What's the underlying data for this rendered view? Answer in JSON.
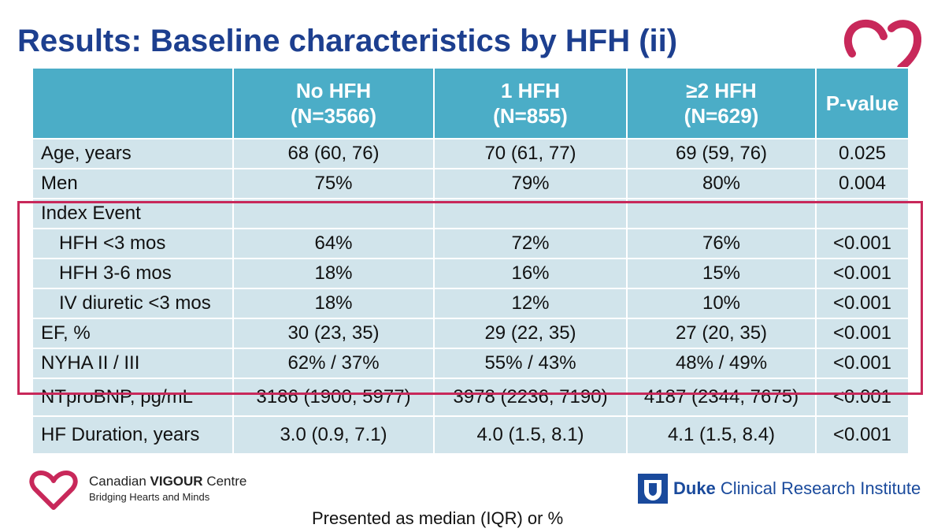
{
  "header": {
    "title": "Results: Baseline characteristics by HFH (ii)"
  },
  "table": {
    "columns": [
      {
        "name": "No HFH",
        "n": "(N=3566)"
      },
      {
        "name": "1 HFH",
        "n": "(N=855)"
      },
      {
        "name": "≥2 HFH",
        "n": "(N=629)"
      },
      {
        "name": "P-value"
      }
    ],
    "rows": [
      {
        "label": "Age, years",
        "values": [
          "68 (60, 76)",
          "70 (61, 77)",
          "69 (59, 76)",
          "0.025"
        ]
      },
      {
        "label": "Men",
        "values": [
          "75%",
          "79%",
          "80%",
          "0.004"
        ]
      },
      {
        "label": "Index Event"
      },
      {
        "label": "HFH <3 mos",
        "indent": true,
        "values": [
          "64%",
          "72%",
          "76%",
          "<0.001"
        ]
      },
      {
        "label": "HFH 3-6 mos",
        "indent": true,
        "values": [
          "18%",
          "16%",
          "15%",
          "<0.001"
        ]
      },
      {
        "label": "IV diuretic <3 mos",
        "indent": true,
        "values": [
          "18%",
          "12%",
          "10%",
          "<0.001"
        ]
      },
      {
        "label": "EF, %",
        "values": [
          "30 (23, 35)",
          "29 (22, 35)",
          "27 (20, 35)",
          "<0.001"
        ]
      },
      {
        "label": "NYHA II / III",
        "values": [
          "62% / 37%",
          "55% / 43%",
          "48% / 49%",
          "<0.001"
        ]
      },
      {
        "label": "NTproBNP, pg/mL",
        "values": [
          "3186 (1900, 5977)",
          "3978 (2236, 7190)",
          "4187 (2344, 7675)",
          "<0.001"
        ]
      },
      {
        "label": "HF Duration, years",
        "values": [
          "3.0 (0.9, 7.1)",
          "4.0 (1.5, 8.1)",
          "4.1 (1.5, 8.4)",
          "<0.001"
        ]
      }
    ]
  },
  "footer": {
    "cvc": {
      "name_1": "Canadian",
      "name_2": "VIGOUR",
      "name_3": "Centre",
      "tagline": "Bridging Hearts and Minds"
    },
    "duke": {
      "name_1": "Duke",
      "name_2": "Clinical Research Institute"
    },
    "note": "Presented as median (IQR) or %"
  }
}
